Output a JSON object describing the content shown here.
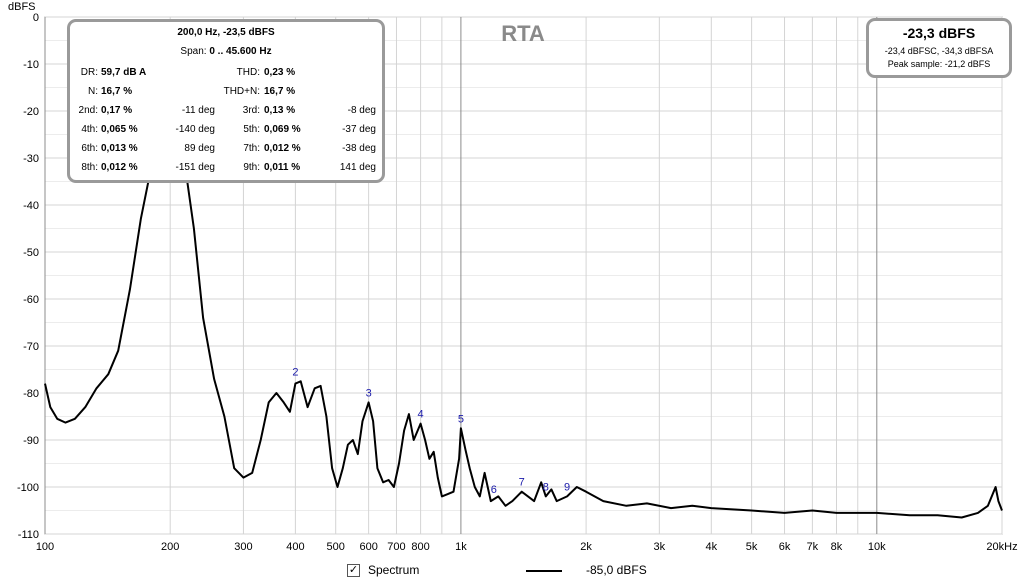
{
  "y_unit": "dBFS",
  "chart_data": {
    "type": "line",
    "title": "RTA",
    "xlabel": "",
    "ylabel": "dBFS",
    "x_scale": "log",
    "xlim": [
      100,
      20000
    ],
    "ylim": [
      -110,
      0
    ],
    "grid": true,
    "x_ticks": [
      100,
      200,
      300,
      400,
      500,
      600,
      700,
      800,
      1000,
      2000,
      3000,
      4000,
      5000,
      6000,
      7000,
      8000,
      10000,
      20000
    ],
    "x_tick_labels": [
      "100",
      "200",
      "300",
      "400",
      "500",
      "600",
      "700",
      "800",
      "1k",
      "2k",
      "3k",
      "4k",
      "5k",
      "6k",
      "7k",
      "8k",
      "10k",
      "20kHz"
    ],
    "y_ticks": [
      0,
      -10,
      -20,
      -30,
      -40,
      -50,
      -60,
      -70,
      -80,
      -90,
      -100,
      -110
    ],
    "series": [
      {
        "name": "Spectrum",
        "color": "#000000",
        "points": [
          [
            100,
            -78
          ],
          [
            103,
            -83
          ],
          [
            107,
            -85.5
          ],
          [
            112,
            -86.3
          ],
          [
            118,
            -85.5
          ],
          [
            125,
            -83
          ],
          [
            133,
            -79
          ],
          [
            142,
            -76
          ],
          [
            150,
            -71
          ],
          [
            160,
            -58
          ],
          [
            170,
            -43
          ],
          [
            180,
            -32
          ],
          [
            190,
            -26
          ],
          [
            197,
            -23.5
          ],
          [
            205,
            -24
          ],
          [
            215,
            -29
          ],
          [
            228,
            -45
          ],
          [
            240,
            -64
          ],
          [
            255,
            -77
          ],
          [
            270,
            -85
          ],
          [
            285,
            -96
          ],
          [
            300,
            -98
          ],
          [
            315,
            -97
          ],
          [
            330,
            -90
          ],
          [
            345,
            -82
          ],
          [
            360,
            -80
          ],
          [
            375,
            -82
          ],
          [
            388,
            -84
          ],
          [
            400,
            -78
          ],
          [
            412,
            -77.5
          ],
          [
            428,
            -83
          ],
          [
            445,
            -79
          ],
          [
            460,
            -78.5
          ],
          [
            475,
            -85
          ],
          [
            490,
            -96
          ],
          [
            505,
            -100
          ],
          [
            520,
            -96
          ],
          [
            535,
            -91
          ],
          [
            550,
            -90
          ],
          [
            565,
            -93
          ],
          [
            580,
            -86
          ],
          [
            600,
            -82
          ],
          [
            615,
            -86
          ],
          [
            630,
            -96
          ],
          [
            650,
            -99
          ],
          [
            670,
            -98.5
          ],
          [
            690,
            -100
          ],
          [
            710,
            -95
          ],
          [
            730,
            -88
          ],
          [
            750,
            -84.5
          ],
          [
            770,
            -90
          ],
          [
            800,
            -86.5
          ],
          [
            820,
            -90
          ],
          [
            840,
            -94
          ],
          [
            860,
            -92.5
          ],
          [
            880,
            -98
          ],
          [
            900,
            -102
          ],
          [
            930,
            -101.5
          ],
          [
            960,
            -101
          ],
          [
            990,
            -94
          ],
          [
            1000,
            -87.5
          ],
          [
            1025,
            -92
          ],
          [
            1050,
            -96
          ],
          [
            1080,
            -100
          ],
          [
            1110,
            -102
          ],
          [
            1140,
            -97
          ],
          [
            1180,
            -103
          ],
          [
            1230,
            -102
          ],
          [
            1280,
            -104
          ],
          [
            1330,
            -103
          ],
          [
            1400,
            -101
          ],
          [
            1450,
            -102
          ],
          [
            1500,
            -103
          ],
          [
            1560,
            -99
          ],
          [
            1600,
            -102
          ],
          [
            1650,
            -100.5
          ],
          [
            1700,
            -103
          ],
          [
            1800,
            -102
          ],
          [
            1900,
            -100
          ],
          [
            2000,
            -101
          ],
          [
            2200,
            -103
          ],
          [
            2500,
            -104
          ],
          [
            2800,
            -103.5
          ],
          [
            3200,
            -104.5
          ],
          [
            3600,
            -104
          ],
          [
            4000,
            -104.5
          ],
          [
            5000,
            -105
          ],
          [
            6000,
            -105.5
          ],
          [
            7000,
            -105
          ],
          [
            8000,
            -105.5
          ],
          [
            10000,
            -105.5
          ],
          [
            12000,
            -106
          ],
          [
            14000,
            -106
          ],
          [
            16000,
            -106.5
          ],
          [
            17500,
            -105.5
          ],
          [
            18500,
            -104
          ],
          [
            19300,
            -100
          ],
          [
            19600,
            -103
          ],
          [
            20000,
            -105
          ]
        ]
      }
    ],
    "harmonic_markers": [
      {
        "label": "2",
        "x": 400,
        "y": -77.5
      },
      {
        "label": "3",
        "x": 600,
        "y": -82
      },
      {
        "label": "4",
        "x": 800,
        "y": -86.5
      },
      {
        "label": "5",
        "x": 1000,
        "y": -87.5
      },
      {
        "label": "6",
        "x": 1200,
        "y": -102.5
      },
      {
        "label": "7",
        "x": 1400,
        "y": -101
      },
      {
        "label": "8",
        "x": 1600,
        "y": -102
      },
      {
        "label": "9",
        "x": 1800,
        "y": -102
      }
    ]
  },
  "info_panel": {
    "title": "200,0 Hz, -23,5 dBFS",
    "span_label": "Span:",
    "span_value": "0 .. 45.600 Hz",
    "rows": [
      {
        "l1": "DR:",
        "v1": "59,7 dB A",
        "d1": "",
        "l2": "THD:",
        "v2": "0,23 %",
        "d2": ""
      },
      {
        "l1": "N:",
        "v1": "16,7 %",
        "d1": "",
        "l2": "THD+N:",
        "v2": "16,7 %",
        "d2": ""
      },
      {
        "l1": "2nd:",
        "v1": "0,17 %",
        "d1": "-11 deg",
        "l2": "3rd:",
        "v2": "0,13 %",
        "d2": "-8 deg"
      },
      {
        "l1": "4th:",
        "v1": "0,065 %",
        "d1": "-140 deg",
        "l2": "5th:",
        "v2": "0,069 %",
        "d2": "-37 deg"
      },
      {
        "l1": "6th:",
        "v1": "0,013 %",
        "d1": "89 deg",
        "l2": "7th:",
        "v2": "0,012 %",
        "d2": "-38 deg"
      },
      {
        "l1": "8th:",
        "v1": "0,012 %",
        "d1": "-151 deg",
        "l2": "9th:",
        "v2": "0,011 %",
        "d2": "141 deg"
      }
    ]
  },
  "level_panel": {
    "main": "-23,3 dBFS",
    "sub": "-23,4 dBFSC, -34,3 dBFSA",
    "peak": "Peak sample: -21,2 dBFS"
  },
  "legend": {
    "checked": true,
    "check_glyph": "✓",
    "label": "Spectrum",
    "level": "-85,0 dBFS"
  }
}
